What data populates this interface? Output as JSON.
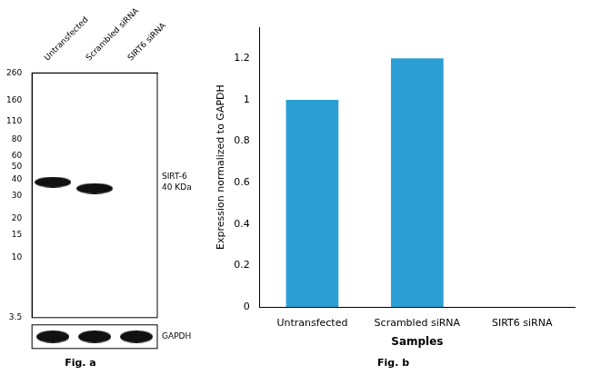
{
  "chart_data": [
    {
      "type": "blot",
      "title": "Fig. a",
      "categories": [
        "Untransfected",
        "Scrambled siRNA",
        "SIRT6 siRNA"
      ],
      "series": [
        {
          "name": "SIRT-6\n40 KDa",
          "color": "#111111",
          "values": [
            38,
            34,
            null
          ]
        }
      ],
      "annotations": [
        "GAPDH"
      ],
      "log": "y",
      "ylim": [
        3.5,
        260
      ],
      "yticks": [
        260,
        160,
        110,
        80,
        60,
        50,
        40,
        30,
        20,
        15,
        10,
        3.5
      ],
      "grid": false
    },
    {
      "type": "bar",
      "title": "Fig. b",
      "categories": [
        "Untransfected",
        "Scrambled siRNA",
        "SIRT6 siRNA"
      ],
      "values": [
        1.0,
        1.2,
        0.0
      ],
      "color": "#2b9fd4",
      "xlabel": "Samples",
      "ylabel": "Expression normalized to GAPDH",
      "ylim": [
        0,
        1.35
      ],
      "yticks": [
        0,
        0.2,
        0.4,
        0.6,
        0.8,
        1.0,
        1.2
      ],
      "grid": false
    }
  ]
}
